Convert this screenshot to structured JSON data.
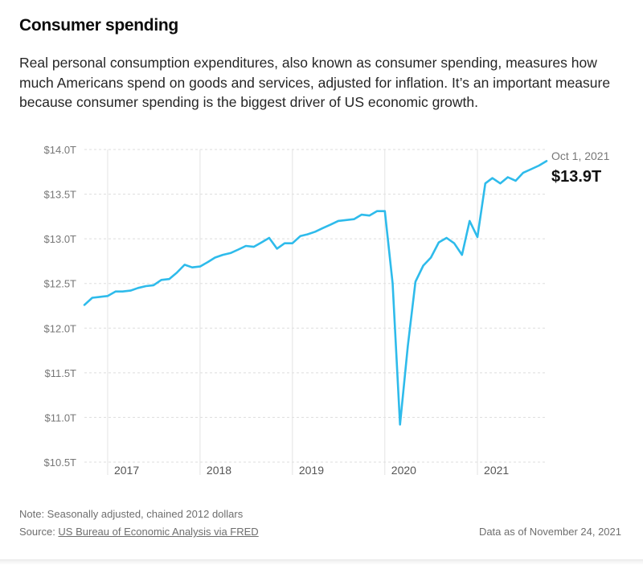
{
  "title": "Consumer spending",
  "description": "Real personal consumption expenditures, also known as consumer spending, measures how much Americans spend on goods and services, adjusted for inflation. It’s an important measure because consumer spending is the biggest driver of US economic growth.",
  "footer": {
    "note": "Note: Seasonally adjusted, chained 2012 dollars",
    "source_prefix": "Source: ",
    "source_link": "US Bureau of Economic Analysis via FRED",
    "data_as_of": "Data as of November 24, 2021"
  },
  "colors": {
    "line": "#2ebbeb",
    "grid": "#dddddd",
    "axis_text": "#777777"
  },
  "chart_data": {
    "type": "line",
    "title": "Consumer spending",
    "xlabel": "",
    "ylabel": "",
    "ylim": [
      10.5,
      14.0
    ],
    "xlim": [
      "2016-10-01",
      "2021-10-01"
    ],
    "y_ticks": [
      {
        "value": 14.0,
        "label": "$14.0T"
      },
      {
        "value": 13.5,
        "label": "$13.5T"
      },
      {
        "value": 13.0,
        "label": "$13.0T"
      },
      {
        "value": 12.5,
        "label": "$12.5T"
      },
      {
        "value": 12.0,
        "label": "$12.0T"
      },
      {
        "value": 11.5,
        "label": "$11.5T"
      },
      {
        "value": 11.0,
        "label": "$11.0T"
      },
      {
        "value": 10.5,
        "label": "$10.5T"
      }
    ],
    "x_ticks": [
      {
        "date": "2017-01-01",
        "label": "2017"
      },
      {
        "date": "2018-01-01",
        "label": "2018"
      },
      {
        "date": "2019-01-01",
        "label": "2019"
      },
      {
        "date": "2020-01-01",
        "label": "2020"
      },
      {
        "date": "2021-01-01",
        "label": "2021"
      }
    ],
    "grid": true,
    "annotation": {
      "date_label": "Oct 1, 2021",
      "value_label": "$13.9T"
    },
    "series": [
      {
        "unit": "trillions of chained 2012 dollars",
        "x": [
          "2016-10-01",
          "2016-11-01",
          "2016-12-01",
          "2017-01-01",
          "2017-02-01",
          "2017-03-01",
          "2017-04-01",
          "2017-05-01",
          "2017-06-01",
          "2017-07-01",
          "2017-08-01",
          "2017-09-01",
          "2017-10-01",
          "2017-11-01",
          "2017-12-01",
          "2018-01-01",
          "2018-02-01",
          "2018-03-01",
          "2018-04-01",
          "2018-05-01",
          "2018-06-01",
          "2018-07-01",
          "2018-08-01",
          "2018-09-01",
          "2018-10-01",
          "2018-11-01",
          "2018-12-01",
          "2019-01-01",
          "2019-02-01",
          "2019-03-01",
          "2019-04-01",
          "2019-05-01",
          "2019-06-01",
          "2019-07-01",
          "2019-08-01",
          "2019-09-01",
          "2019-10-01",
          "2019-11-01",
          "2019-12-01",
          "2020-01-01",
          "2020-02-01",
          "2020-03-01",
          "2020-04-01",
          "2020-05-01",
          "2020-06-01",
          "2020-07-01",
          "2020-08-01",
          "2020-09-01",
          "2020-10-01",
          "2020-11-01",
          "2020-12-01",
          "2021-01-01",
          "2021-02-01",
          "2021-03-01",
          "2021-04-01",
          "2021-05-01",
          "2021-06-01",
          "2021-07-01",
          "2021-08-01",
          "2021-09-01",
          "2021-10-01"
        ],
        "y": [
          12.26,
          12.34,
          12.35,
          12.36,
          12.41,
          12.41,
          12.42,
          12.45,
          12.47,
          12.48,
          12.54,
          12.55,
          12.62,
          12.71,
          12.68,
          12.69,
          12.74,
          12.79,
          12.82,
          12.84,
          12.88,
          12.92,
          12.91,
          12.96,
          13.01,
          12.89,
          12.95,
          12.95,
          13.03,
          13.05,
          13.08,
          13.12,
          13.16,
          13.2,
          13.21,
          13.22,
          13.27,
          13.26,
          13.31,
          13.31,
          12.5,
          10.92,
          11.8,
          12.52,
          12.7,
          12.79,
          12.96,
          13.01,
          12.95,
          12.82,
          13.2,
          13.02,
          13.62,
          13.68,
          13.62,
          13.69,
          13.65,
          13.74,
          13.78,
          13.82,
          13.87
        ]
      }
    ]
  }
}
